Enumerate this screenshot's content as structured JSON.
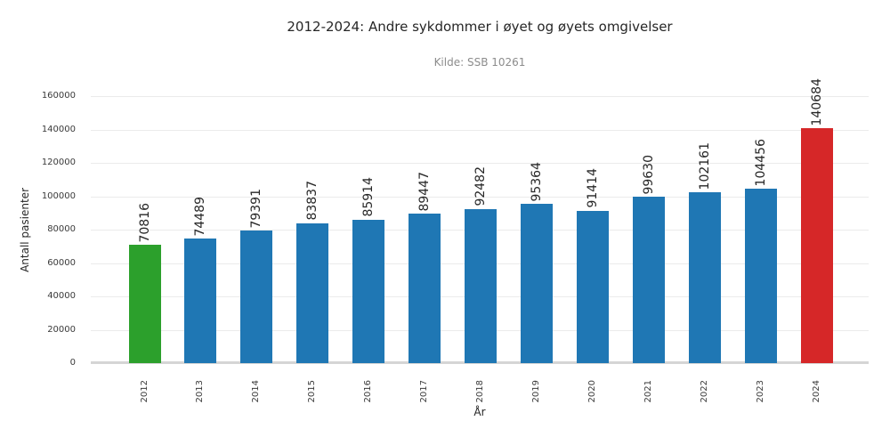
{
  "figure": {
    "title": "2012-2024: Andre sykdommer i øyet og øyets omgivelser",
    "subtitle": "Kilde: SSB 10261"
  },
  "chart_data": {
    "type": "bar",
    "title": "2012-2024: Andre sykdommer i øyet og øyets omgivelser",
    "subtitle": "Kilde: SSB 10261",
    "xlabel": "År",
    "ylabel": "Antall pasienter",
    "categories": [
      "2012",
      "2013",
      "2014",
      "2015",
      "2016",
      "2017",
      "2018",
      "2019",
      "2020",
      "2021",
      "2022",
      "2023",
      "2024"
    ],
    "values": [
      70816,
      74489,
      79391,
      83837,
      85914,
      89447,
      92482,
      95364,
      91414,
      99630,
      102161,
      104456,
      140684
    ],
    "bar_colors": [
      "#2ca02c",
      "#1f77b4",
      "#1f77b4",
      "#1f77b4",
      "#1f77b4",
      "#1f77b4",
      "#1f77b4",
      "#1f77b4",
      "#1f77b4",
      "#1f77b4",
      "#1f77b4",
      "#1f77b4",
      "#d62728"
    ],
    "value_labels_shown": true,
    "ylim": [
      0,
      160000
    ],
    "yticks": [
      0,
      20000,
      40000,
      60000,
      80000,
      100000,
      120000,
      140000,
      160000
    ],
    "grid": "horizontal",
    "legend": null,
    "colors": {
      "default_bar": "#1f77b4",
      "first_bar_highlight": "#2ca02c",
      "last_bar_highlight": "#d62728",
      "gridline": "#ebebeb",
      "axis_line": "#d5d5d5",
      "title_text": "#262626",
      "subtitle_text": "#8c8c8c",
      "tick_text": "#3a3a3a"
    }
  }
}
